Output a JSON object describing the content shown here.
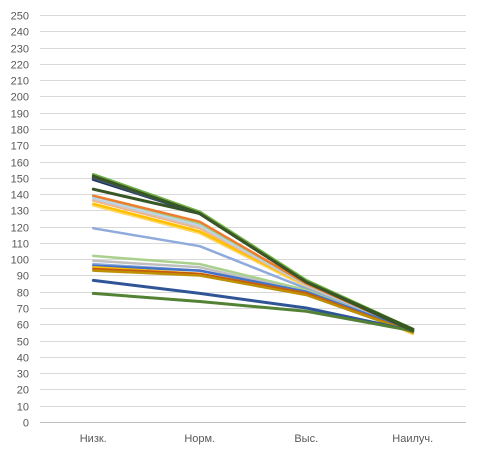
{
  "chart_data": {
    "type": "line",
    "title": "",
    "xlabel": "",
    "ylabel": "",
    "categories": [
      "Низк.",
      "Норм.",
      "Выс.",
      "Наилуч."
    ],
    "ylim": [
      0,
      250
    ],
    "ytick_step": 10,
    "grid": true,
    "legend": "none",
    "series": [
      {
        "color": "#FFD966",
        "values": [
          133,
          116,
          83,
          54
        ],
        "width": 2.5
      },
      {
        "color": "#FFC000",
        "values": [
          134,
          117,
          84,
          55
        ],
        "width": 2.5
      },
      {
        "color": "#F4B183",
        "values": [
          136,
          119,
          84,
          55
        ],
        "width": 2.5
      },
      {
        "color": "#C9C9C9",
        "values": [
          137,
          120,
          84,
          55
        ],
        "width": 2.5
      },
      {
        "color": "#BDD7EE",
        "values": [
          138,
          121,
          85,
          56
        ],
        "width": 2.5
      },
      {
        "color": "#A9D18E",
        "values": [
          139,
          122,
          85,
          56
        ],
        "width": 2.5
      },
      {
        "color": "#ED7D31",
        "values": [
          139,
          123,
          85,
          56
        ],
        "width": 2.5
      },
      {
        "color": "#8FAADC",
        "values": [
          119,
          108,
          82,
          55
        ],
        "width": 2.5
      },
      {
        "color": "#A9D18E",
        "values": [
          102,
          97,
          81,
          55
        ],
        "width": 2.5
      },
      {
        "color": "#BFBFBF",
        "values": [
          99,
          95,
          80,
          55
        ],
        "width": 2.5
      },
      {
        "color": "#8FAADC",
        "values": [
          97,
          93,
          80,
          55
        ],
        "width": 2.5
      },
      {
        "color": "#4472C4",
        "values": [
          96,
          93,
          80,
          56
        ],
        "width": 2.5
      },
      {
        "color": "#FFC000",
        "values": [
          95,
          91,
          79,
          55
        ],
        "width": 2.5
      },
      {
        "color": "#C55A11",
        "values": [
          94,
          91,
          79,
          55
        ],
        "width": 2.5
      },
      {
        "color": "#BF9000",
        "values": [
          93,
          90,
          78,
          55
        ],
        "width": 2.5
      },
      {
        "color": "#2F5597",
        "values": [
          87,
          79,
          70,
          56
        ],
        "width": 3
      },
      {
        "color": "#548235",
        "values": [
          79,
          74,
          68,
          56
        ],
        "width": 3
      },
      {
        "color": "#375623",
        "values": [
          143,
          128,
          86,
          56
        ],
        "width": 3
      },
      {
        "color": "#203864",
        "values": [
          149,
          128,
          86,
          57
        ],
        "width": 3
      },
      {
        "color": "#44546A",
        "values": [
          150,
          128,
          86,
          57
        ],
        "width": 3
      },
      {
        "color": "#70AD47",
        "values": [
          152,
          129,
          87,
          57
        ],
        "width": 3
      },
      {
        "color": "#385723",
        "values": [
          151,
          128,
          86,
          57
        ],
        "width": 3
      }
    ]
  }
}
